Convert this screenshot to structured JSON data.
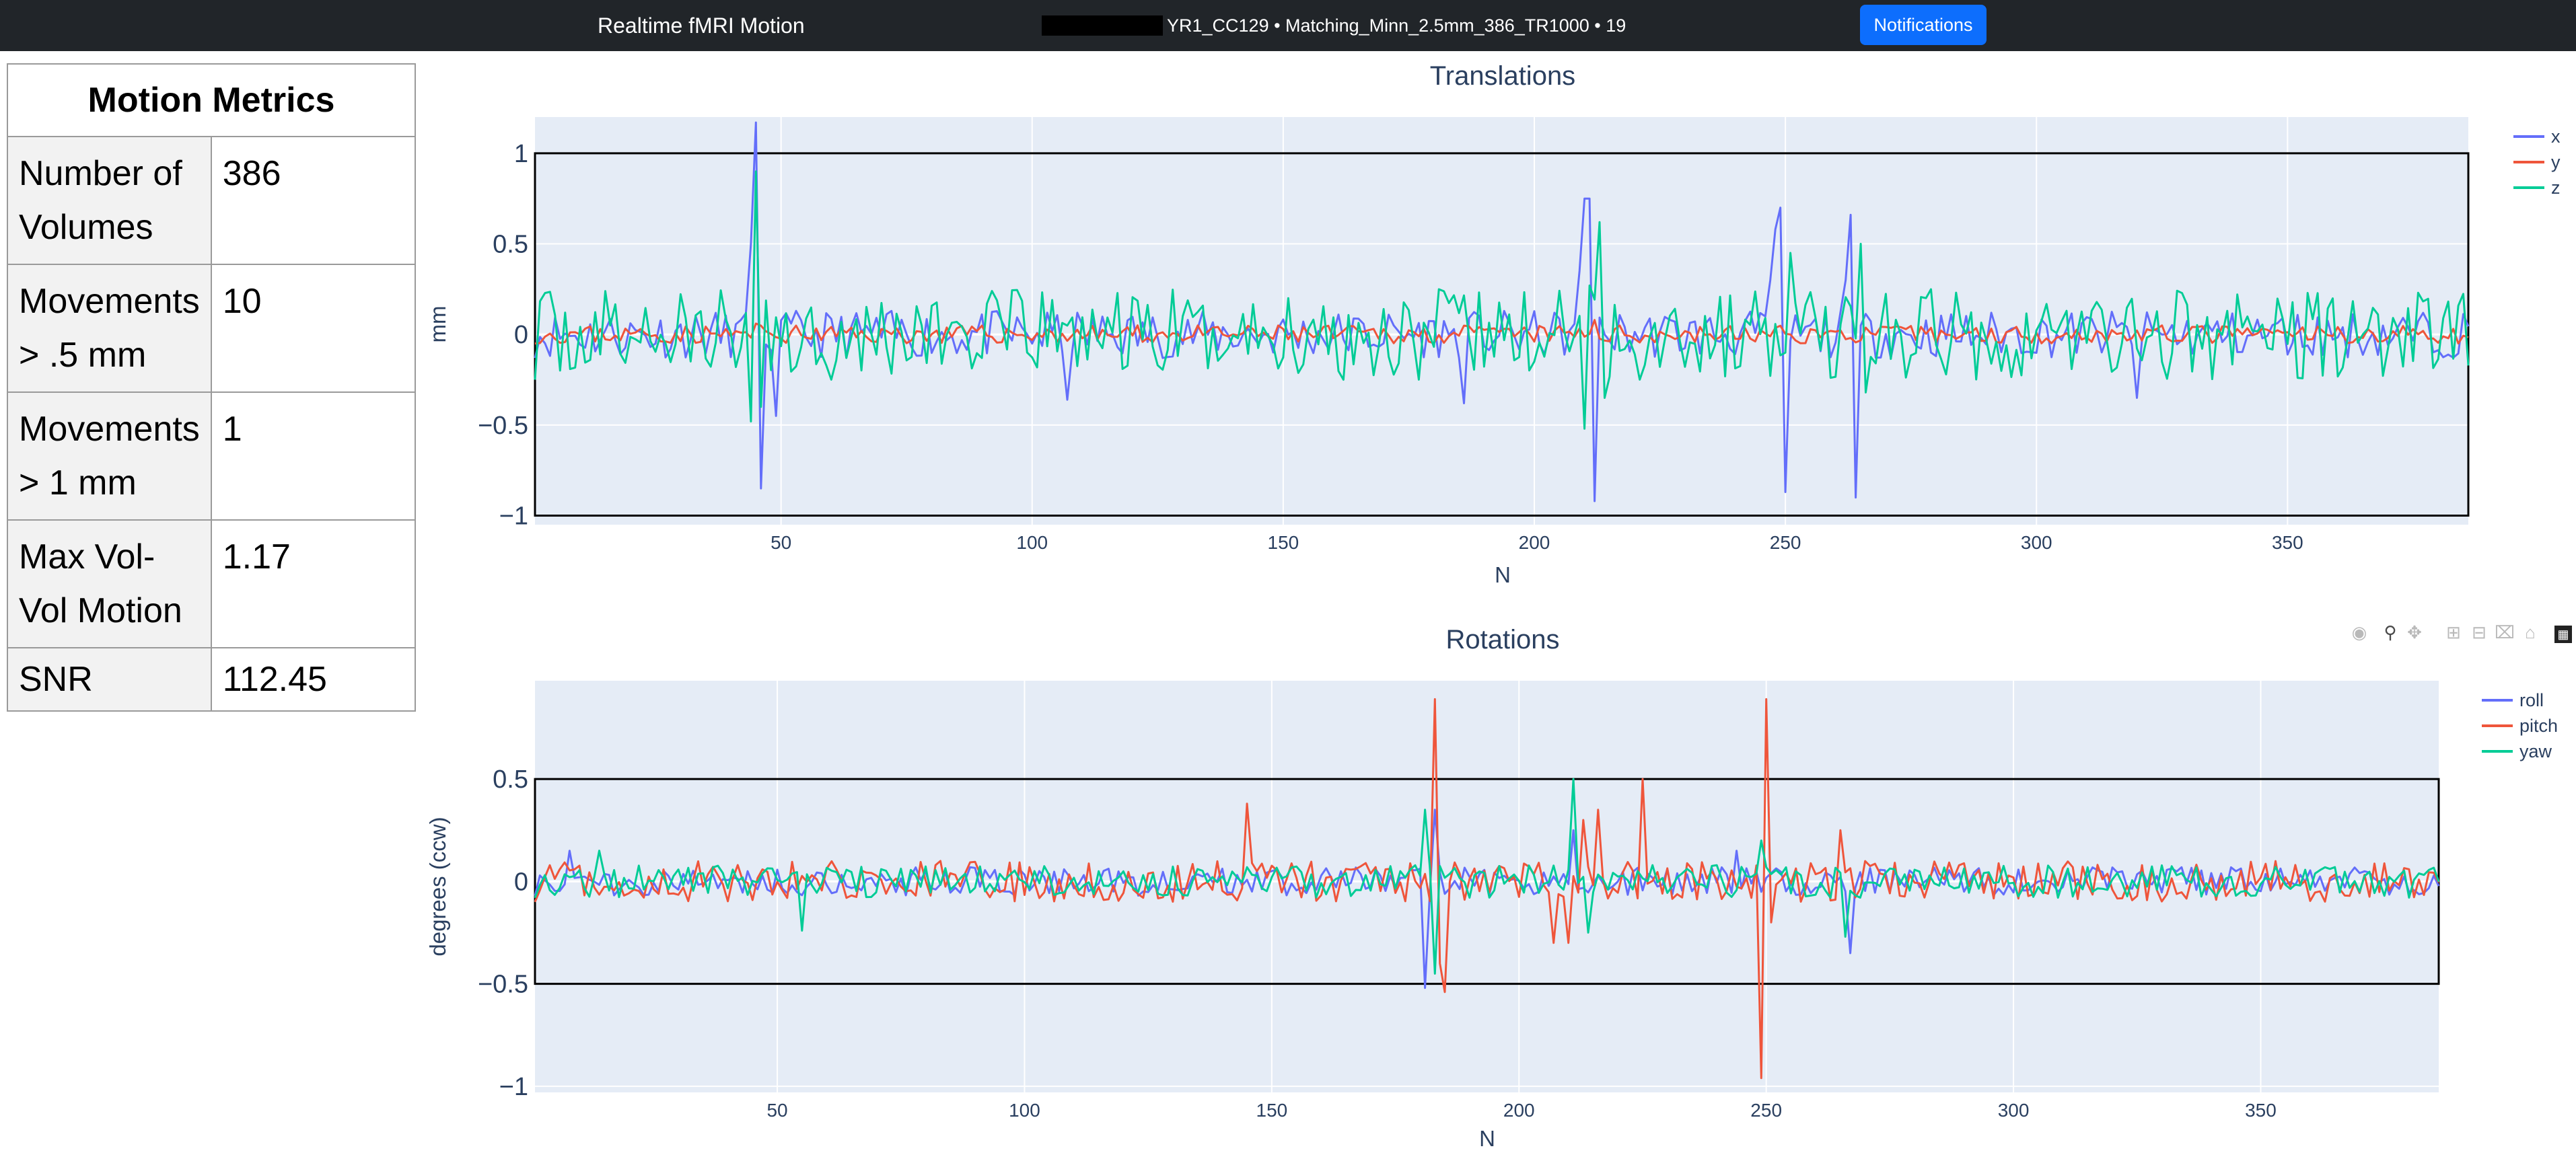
{
  "header": {
    "title": "Realtime fMRI Motion",
    "session": "YR1_CC129 • Matching_Minn_2.5mm_386_TR1000 • 19",
    "notifications_label": "Notifications"
  },
  "metrics": {
    "title": "Motion Metrics",
    "rows": [
      {
        "label": "Number of Volumes",
        "value": "386"
      },
      {
        "label": "Movements > .5 mm",
        "value": "10"
      },
      {
        "label": "Movements > 1 mm",
        "value": "1"
      },
      {
        "label": "Max Vol-Vol Motion",
        "value": "1.17"
      },
      {
        "label": "SNR",
        "value": "112.45"
      }
    ]
  },
  "colors": {
    "blue": "#636efa",
    "red": "#ef553b",
    "green": "#00cc96",
    "plot_bg": "#e5ecf6",
    "text": "#2a3f5f"
  },
  "modebar": {
    "icons": [
      "camera-icon",
      "zoom-icon",
      "pan-icon",
      "zoom-in-icon",
      "zoom-out-icon",
      "autoscale-icon",
      "reset-axes-icon",
      "plotly-logo-icon"
    ]
  },
  "chart_data": [
    {
      "type": "line",
      "title": "Translations",
      "xlabel": "N",
      "ylabel": "mm",
      "xlim": [
        1,
        386
      ],
      "ylim": [
        -1.05,
        1.2
      ],
      "xticks": [
        50,
        100,
        150,
        200,
        250,
        300,
        350
      ],
      "yticks": [
        1,
        0.5,
        0,
        -0.5,
        -1
      ],
      "ytick_labels": [
        "1",
        "0.5",
        "0",
        "−0.5",
        "−1"
      ],
      "threshold_box": [
        -1,
        1
      ],
      "legend_position": "top-right",
      "series": [
        {
          "name": "x",
          "color": "#636efa",
          "amp": 0.13,
          "seed": 11,
          "events": [
            [
              44,
              0.5
            ],
            [
              45,
              1.17
            ],
            [
              46,
              -0.85
            ],
            [
              49,
              -0.45
            ],
            [
              107,
              -0.36
            ],
            [
              186,
              -0.38
            ],
            [
              209,
              0.35
            ],
            [
              210,
              0.75
            ],
            [
              211,
              0.75
            ],
            [
              212,
              -0.92
            ],
            [
              247,
              0.3
            ],
            [
              248,
              0.58
            ],
            [
              249,
              0.7
            ],
            [
              250,
              -0.87
            ],
            [
              262,
              0.3
            ],
            [
              263,
              0.66
            ],
            [
              264,
              -0.9
            ],
            [
              320,
              -0.35
            ]
          ]
        },
        {
          "name": "y",
          "color": "#ef553b",
          "amp": 0.05,
          "seed": 23,
          "events": [
            [
              45,
              0.06
            ],
            [
              212,
              0.08
            ]
          ]
        },
        {
          "name": "z",
          "color": "#00cc96",
          "amp": 0.25,
          "seed": 37,
          "events": [
            [
              44,
              -0.48
            ],
            [
              45,
              0.9
            ],
            [
              46,
              -0.4
            ],
            [
              210,
              -0.52
            ],
            [
              211,
              0.27
            ],
            [
              213,
              0.62
            ],
            [
              214,
              -0.35
            ],
            [
              251,
              0.45
            ],
            [
              265,
              0.5
            ],
            [
              266,
              -0.32
            ]
          ]
        }
      ]
    },
    {
      "type": "line",
      "title": "Rotations",
      "xlabel": "N",
      "ylabel": "degrees (ccw)",
      "xlim": [
        1,
        386
      ],
      "ylim": [
        -1.03,
        0.98
      ],
      "xticks": [
        50,
        100,
        150,
        200,
        250,
        300,
        350
      ],
      "yticks": [
        0.5,
        0,
        -0.5,
        -1
      ],
      "ytick_labels": [
        "0.5",
        "0",
        "−0.5",
        "−1"
      ],
      "threshold_box": [
        -0.5,
        0.5
      ],
      "legend_position": "top-right",
      "series": [
        {
          "name": "roll",
          "color": "#636efa",
          "amp": 0.07,
          "seed": 51,
          "events": [
            [
              8,
              0.15
            ],
            [
              181,
              -0.52
            ],
            [
              183,
              0.35
            ],
            [
              211,
              0.25
            ],
            [
              244,
              0.15
            ],
            [
              267,
              -0.35
            ]
          ]
        },
        {
          "name": "pitch",
          "color": "#ef553b",
          "amp": 0.1,
          "seed": 63,
          "events": [
            [
              145,
              0.38
            ],
            [
              183,
              0.89
            ],
            [
              184,
              -0.4
            ],
            [
              185,
              -0.54
            ],
            [
              207,
              -0.3
            ],
            [
              210,
              -0.3
            ],
            [
              213,
              0.3
            ],
            [
              216,
              0.35
            ],
            [
              225,
              0.5
            ],
            [
              249,
              -0.96
            ],
            [
              250,
              0.89
            ],
            [
              251,
              -0.2
            ],
            [
              265,
              0.25
            ]
          ]
        },
        {
          "name": "yaw",
          "color": "#00cc96",
          "amp": 0.08,
          "seed": 79,
          "events": [
            [
              14,
              0.15
            ],
            [
              55,
              -0.24
            ],
            [
              181,
              0.35
            ],
            [
              183,
              -0.45
            ],
            [
              211,
              0.5
            ],
            [
              214,
              -0.25
            ],
            [
              249,
              0.2
            ],
            [
              266,
              -0.27
            ]
          ]
        }
      ]
    }
  ]
}
